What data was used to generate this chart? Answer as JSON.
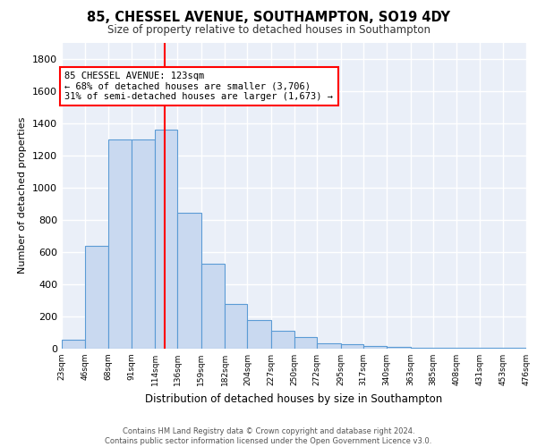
{
  "title": "85, CHESSEL AVENUE, SOUTHAMPTON, SO19 4DY",
  "subtitle": "Size of property relative to detached houses in Southampton",
  "xlabel": "Distribution of detached houses by size in Southampton",
  "ylabel": "Number of detached properties",
  "bin_edges": [
    23,
    46,
    68,
    91,
    114,
    136,
    159,
    182,
    204,
    227,
    250,
    272,
    295,
    317,
    340,
    363,
    385,
    408,
    431,
    453,
    476
  ],
  "bar_heights": [
    55,
    640,
    1300,
    1300,
    1360,
    845,
    525,
    280,
    175,
    110,
    70,
    35,
    25,
    15,
    10,
    8,
    5,
    5,
    5,
    5
  ],
  "tick_labels": [
    "23sqm",
    "46sqm",
    "68sqm",
    "91sqm",
    "114sqm",
    "136sqm",
    "159sqm",
    "182sqm",
    "204sqm",
    "227sqm",
    "250sqm",
    "272sqm",
    "295sqm",
    "317sqm",
    "340sqm",
    "363sqm",
    "385sqm",
    "408sqm",
    "431sqm",
    "453sqm",
    "476sqm"
  ],
  "bar_color": "#c9d9f0",
  "bar_edge_color": "#5b9bd5",
  "vline_x": 123,
  "vline_color": "red",
  "annotation_line1": "85 CHESSEL AVENUE: 123sqm",
  "annotation_line2": "← 68% of detached houses are smaller (3,706)",
  "annotation_line3": "31% of semi-detached houses are larger (1,673) →",
  "annotation_box_color": "white",
  "annotation_box_edge": "red",
  "ylim": [
    0,
    1900
  ],
  "yticks": [
    0,
    200,
    400,
    600,
    800,
    1000,
    1200,
    1400,
    1600,
    1800
  ],
  "footer_line1": "Contains HM Land Registry data © Crown copyright and database right 2024.",
  "footer_line2": "Contains public sector information licensed under the Open Government Licence v3.0.",
  "plot_bg_color": "#eaeff8"
}
